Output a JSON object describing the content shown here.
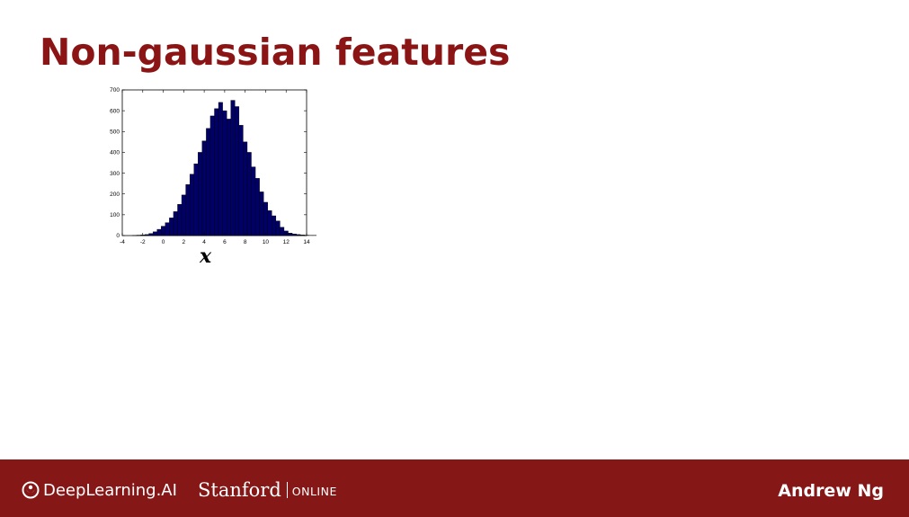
{
  "slide": {
    "title": "Non-gaussian features",
    "variable_label": "x"
  },
  "footer": {
    "brand_deeplearning": "DeepLearning.AI",
    "brand_stanford": "Stanford",
    "brand_online": "ONLINE",
    "author": "Andrew Ng"
  },
  "colors": {
    "title": "#8b1414",
    "footer_bg": "#861717",
    "bar_fill": "#000066"
  },
  "icons": {
    "deeplearning_logo": "deeplearning-logo-icon"
  },
  "chart_data": {
    "type": "bar",
    "title": "",
    "xlabel": "x",
    "ylabel": "",
    "xlim": [
      -4,
      14
    ],
    "ylim": [
      0,
      700
    ],
    "xticks": [
      -4,
      -2,
      0,
      2,
      4,
      6,
      8,
      10,
      12,
      14
    ],
    "yticks": [
      0,
      100,
      200,
      300,
      400,
      500,
      600,
      700
    ],
    "grid": false,
    "legend": "none",
    "bin_width": 0.4,
    "bin_start": -3.0,
    "values": [
      1,
      2,
      3,
      5,
      10,
      18,
      30,
      45,
      62,
      85,
      115,
      150,
      195,
      245,
      295,
      345,
      400,
      455,
      515,
      575,
      610,
      640,
      600,
      560,
      650,
      620,
      530,
      450,
      400,
      330,
      275,
      210,
      160,
      120,
      95,
      70,
      40,
      22,
      12,
      8,
      5,
      3,
      2,
      1,
      1
    ]
  }
}
